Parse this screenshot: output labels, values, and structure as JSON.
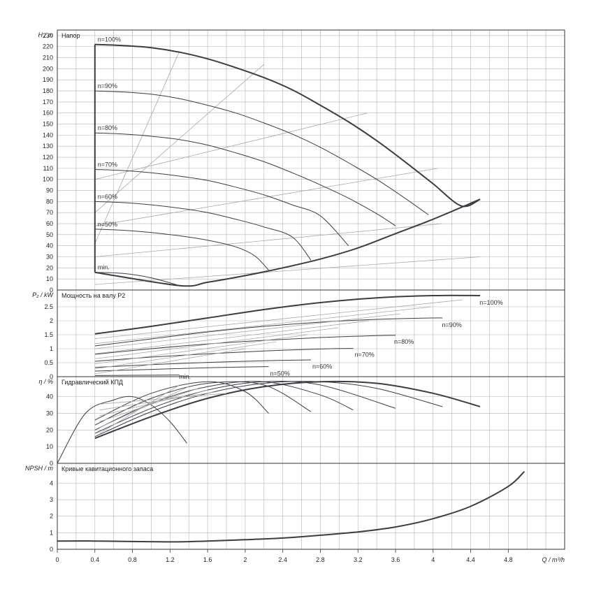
{
  "chart_data": {
    "type": "line",
    "x_axis": {
      "label": "Q / m³/h",
      "range": [
        0,
        5.4
      ],
      "ticks": [
        "0",
        "0.4",
        "0.8",
        "1.2",
        "1.6",
        "2",
        "2.4",
        "2.8",
        "3.2",
        "3.6",
        "4",
        "4.4",
        "4.8"
      ]
    },
    "panels": [
      {
        "id": "head",
        "title": "Напор",
        "ylabel": "H / m",
        "ylim": [
          0,
          235
        ],
        "yticks": [
          "0",
          "10",
          "20",
          "30",
          "40",
          "50",
          "60",
          "70",
          "80",
          "90",
          "100",
          "110",
          "120",
          "130",
          "140",
          "150",
          "160",
          "170",
          "180",
          "190",
          "200",
          "210",
          "220",
          "230"
        ],
        "speed_curves": [
          {
            "name": "n=100%",
            "q": [
              0.4,
              0.7,
              1.0,
              1.3,
              1.6,
              1.9,
              2.2,
              2.5,
              2.8,
              3.1,
              3.4,
              3.7,
              4.0,
              4.3,
              4.5
            ],
            "h": [
              222,
              221,
              219,
              215,
              209,
              201,
              192,
              181,
              167,
              152,
              135,
              116,
              96,
              76,
              82
            ]
          },
          {
            "name": "n=90%",
            "q": [
              0.4,
              0.7,
              1.0,
              1.3,
              1.6,
              1.9,
              2.2,
              2.5,
              2.8,
              3.1,
              3.4,
              3.7,
              3.95
            ],
            "h": [
              180,
              179,
              177,
              173,
              167,
              160,
              151,
              141,
              129,
              115,
              100,
              83,
              68
            ]
          },
          {
            "name": "n=80%",
            "q": [
              0.4,
              0.7,
              1.0,
              1.3,
              1.6,
              1.9,
              2.2,
              2.5,
              2.8,
              3.1,
              3.4,
              3.6
            ],
            "h": [
              142,
              141,
              139,
              136,
              131,
              124,
              116,
              106,
              95,
              83,
              69,
              58
            ]
          },
          {
            "name": "n=70%",
            "q": [
              0.4,
              0.7,
              1.0,
              1.3,
              1.6,
              1.9,
              2.2,
              2.5,
              2.8,
              3.1
            ],
            "h": [
              109,
              108,
              106,
              103,
              99,
              93,
              86,
              77,
              67,
              40
            ]
          },
          {
            "name": "n=60%",
            "q": [
              0.4,
              0.7,
              1.0,
              1.3,
              1.6,
              1.9,
              2.2,
              2.5,
              2.7
            ],
            "h": [
              80,
              79,
              77,
              74,
              70,
              64,
              57,
              48,
              27
            ]
          },
          {
            "name": "n=50%",
            "q": [
              0.4,
              0.7,
              1.0,
              1.3,
              1.6,
              1.9,
              2.1,
              2.25
            ],
            "h": [
              55,
              54,
              52,
              49,
              45,
              39,
              31,
              18
            ]
          },
          {
            "name": "min.",
            "q": [
              0.4,
              0.7,
              1.0,
              1.3
            ],
            "h": [
              16,
              15,
              11,
              4
            ]
          }
        ],
        "operating_envelope": {
          "q": [
            0.4,
            0.4,
            1.3,
            1.6,
            2.0,
            2.4,
            2.8,
            3.2,
            3.6,
            4.0,
            4.5
          ],
          "h": [
            222,
            16,
            4,
            7,
            13,
            20,
            28,
            38,
            51,
            64,
            82
          ]
        },
        "system_curves": [
          {
            "q": [
              0.4,
              1.3
            ],
            "h": [
              42,
              216
            ]
          },
          {
            "q": [
              0.4,
              2.2
            ],
            "h": [
              70,
              204
            ]
          },
          {
            "q": [
              0.4,
              3.3
            ],
            "h": [
              100,
              160
            ]
          },
          {
            "q": [
              0.4,
              4.05
            ],
            "h": [
              58,
              110
            ]
          },
          {
            "q": [
              0.4,
              4.1
            ],
            "h": [
              30,
              60
            ]
          },
          {
            "q": [
              0.4,
              4.5
            ],
            "h": [
              5,
              30
            ]
          }
        ]
      },
      {
        "id": "power",
        "title": "Мощность на валу P2",
        "ylabel": "P₂ / kW",
        "ylim": [
          0,
          3.1
        ],
        "yticks": [
          "0",
          "0.5",
          "1",
          "1.5",
          "2",
          "2.5"
        ],
        "speed_curves": [
          {
            "name": "n=100%",
            "q": [
              0.4,
              1.0,
              1.6,
              2.2,
              2.8,
              3.4,
              4.0,
              4.5
            ],
            "p": [
              1.53,
              1.8,
              2.1,
              2.4,
              2.65,
              2.82,
              2.9,
              2.9
            ]
          },
          {
            "name": "n=90%",
            "q": [
              0.4,
              1.0,
              1.6,
              2.2,
              2.8,
              3.4,
              4.0,
              4.1
            ],
            "p": [
              1.1,
              1.35,
              1.6,
              1.8,
              1.95,
              2.05,
              2.1,
              2.1
            ]
          },
          {
            "name": "n=80%",
            "q": [
              0.4,
              1.0,
              1.6,
              2.2,
              2.8,
              3.4,
              3.6
            ],
            "p": [
              0.8,
              1.0,
              1.17,
              1.3,
              1.4,
              1.47,
              1.48
            ]
          },
          {
            "name": "n=70%",
            "q": [
              0.4,
              1.0,
              1.6,
              2.2,
              2.8,
              3.15
            ],
            "p": [
              0.55,
              0.7,
              0.82,
              0.92,
              0.99,
              1.01
            ]
          },
          {
            "name": "n=60%",
            "q": [
              0.4,
              1.0,
              1.6,
              2.2,
              2.7
            ],
            "p": [
              0.33,
              0.43,
              0.51,
              0.57,
              0.6
            ]
          },
          {
            "name": "n=50%",
            "q": [
              0.4,
              1.0,
              1.6,
              2.25
            ],
            "p": [
              0.2,
              0.26,
              0.32,
              0.36
            ]
          },
          {
            "name": "min.",
            "q": [
              0.4,
              0.8,
              1.3
            ],
            "p": [
              0.04,
              0.05,
              0.06
            ]
          }
        ]
      },
      {
        "id": "efficiency",
        "title": "Гидравлический КПД",
        "ylabel": "η / %",
        "ylim": [
          0,
          52
        ],
        "yticks": [
          "0",
          "10",
          "20",
          "30",
          "40"
        ],
        "speed_curves": [
          {
            "name": "n=100%",
            "q": [
              0.4,
              1.0,
              1.6,
              2.2,
              2.8,
              3.4,
              4.0,
              4.5
            ],
            "eff": [
              15,
              28,
              39,
              46,
              49,
              48,
              42,
              34
            ]
          },
          {
            "name": "n=90%",
            "q": [
              0.4,
              1.0,
              1.6,
              2.2,
              2.8,
              3.4,
              4.1
            ],
            "eff": [
              16,
              31,
              42,
              48,
              49,
              45,
              34
            ]
          },
          {
            "name": "n=80%",
            "q": [
              0.4,
              1.0,
              1.6,
              2.2,
              2.8,
              3.6
            ],
            "eff": [
              18,
              33,
              44,
              49,
              47,
              33
            ]
          },
          {
            "name": "n=70%",
            "q": [
              0.4,
              1.0,
              1.6,
              2.2,
              2.8,
              3.15
            ],
            "eff": [
              20,
              36,
              46,
              49,
              41,
              32
            ]
          },
          {
            "name": "n=60%",
            "q": [
              0.4,
              1.0,
              1.6,
              2.2,
              2.7
            ],
            "eff": [
              23,
              39,
              48,
              47,
              31
            ]
          },
          {
            "name": "n=50%",
            "q": [
              0.4,
              1.0,
              1.6,
              2.0,
              2.25
            ],
            "eff": [
              26,
              42,
              49,
              43,
              30
            ]
          },
          {
            "name": "min.",
            "q": [
              0.0,
              0.3,
              0.6,
              0.8,
              1.0,
              1.2,
              1.38
            ],
            "eff": [
              0,
              30,
              38,
              40,
              35,
              25,
              12
            ]
          }
        ]
      },
      {
        "id": "npsh",
        "title": "Кривые кавитационного запаса",
        "ylabel": "NPSH / m",
        "ylim": [
          0,
          5.2
        ],
        "yticks": [
          "0",
          "1",
          "2",
          "3",
          "4"
        ],
        "series": [
          {
            "q": [
              0.0,
              0.4,
              0.8,
              1.3,
              1.6,
              2.0,
              2.4,
              2.8,
              3.2,
              3.6,
              4.0,
              4.4,
              4.8,
              4.97
            ],
            "npsh": [
              0.5,
              0.5,
              0.47,
              0.45,
              0.5,
              0.58,
              0.68,
              0.85,
              1.05,
              1.35,
              1.85,
              2.6,
              3.8,
              4.7
            ]
          }
        ]
      }
    ]
  }
}
